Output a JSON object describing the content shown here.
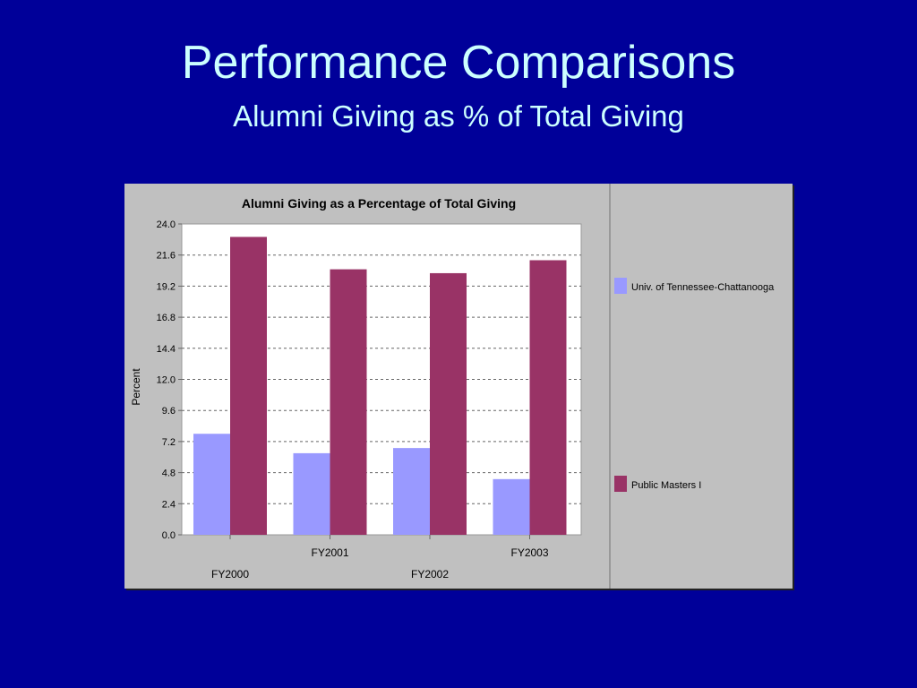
{
  "slide": {
    "title": "Performance Comparisons",
    "subtitle": "Alumni Giving as % of Total Giving"
  },
  "chart_data": {
    "type": "bar",
    "title": "Alumni Giving as a Percentage of Total Giving",
    "ylabel": "Percent",
    "xlabel": "",
    "ylim": [
      0,
      24
    ],
    "yticks": [
      "0.0",
      "2.4",
      "4.8",
      "7.2",
      "9.6",
      "12.0",
      "14.4",
      "16.8",
      "19.2",
      "21.6",
      "24.0"
    ],
    "categories": [
      "FY2000",
      "FY2001",
      "FY2002",
      "FY2003"
    ],
    "series": [
      {
        "name": "Univ. of Tennessee-Chattanooga",
        "color": "#9999ff",
        "values": [
          7.8,
          6.3,
          6.7,
          4.3
        ]
      },
      {
        "name": "Public Masters I",
        "color": "#993366",
        "values": [
          23.0,
          20.5,
          20.2,
          21.2
        ]
      }
    ],
    "grid": "horizontal dashed",
    "legend_position": "right",
    "colors": {
      "plot_bg": "#ffffff",
      "panel_bg": "#c0c0c0",
      "legend_bg": "#c0c0c0"
    }
  }
}
